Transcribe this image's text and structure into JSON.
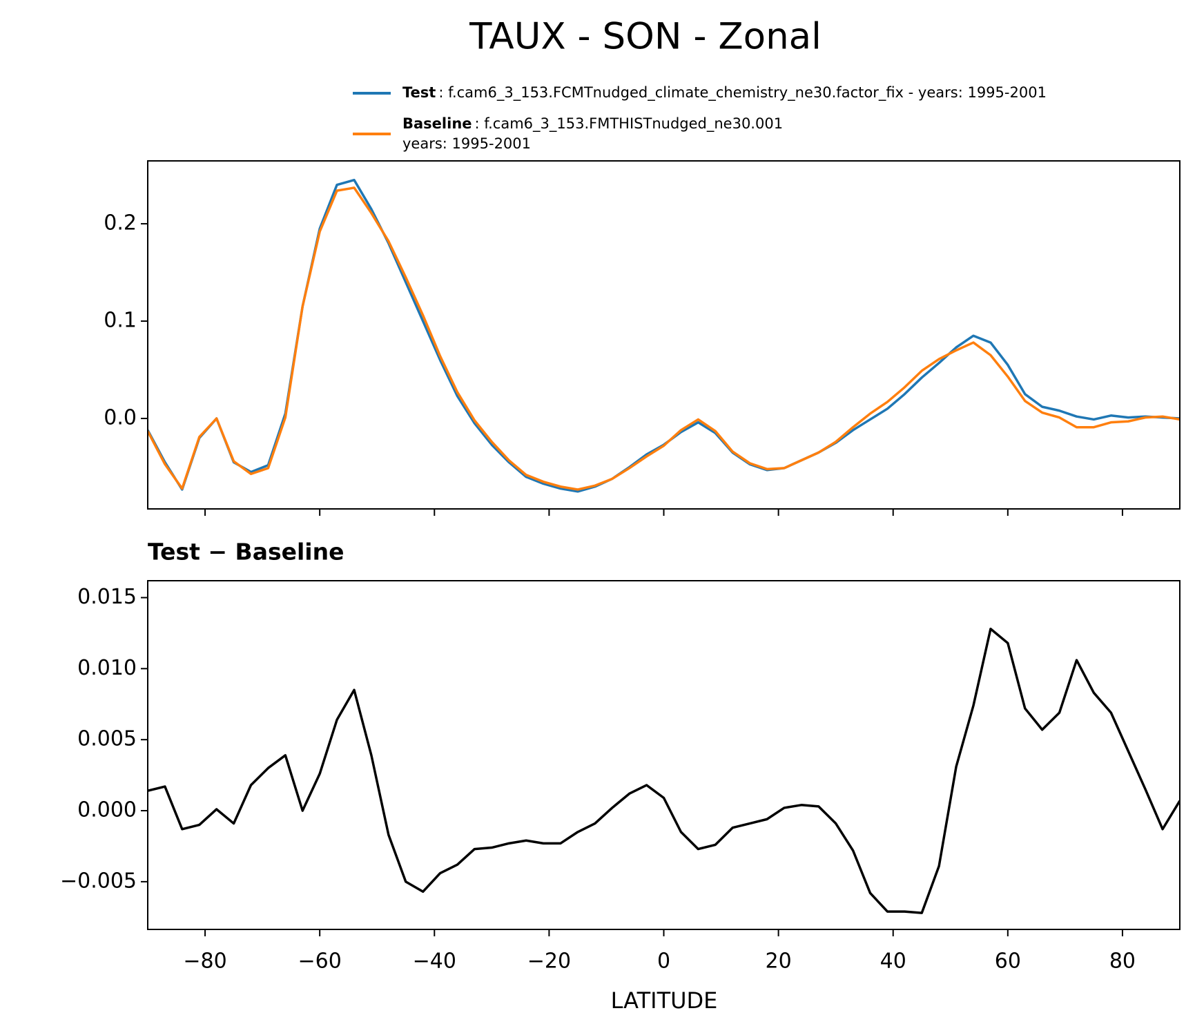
{
  "chart_data": [
    {
      "type": "line",
      "title": "TAUX - SON - Zonal",
      "x": [
        -90,
        -87,
        -84,
        -81,
        -78,
        -75,
        -72,
        -69,
        -66,
        -63,
        -60,
        -57,
        -54,
        -51,
        -48,
        -45,
        -42,
        -39,
        -36,
        -33,
        -30,
        -27,
        -24,
        -21,
        -18,
        -15,
        -12,
        -9,
        -6,
        -3,
        0,
        3,
        6,
        9,
        12,
        15,
        18,
        21,
        24,
        27,
        30,
        33,
        36,
        39,
        42,
        45,
        48,
        51,
        54,
        57,
        60,
        63,
        66,
        69,
        72,
        75,
        78,
        81,
        84,
        87,
        90
      ],
      "series": [
        {
          "name": "Test",
          "label_lines": [
            ": f.cam6_3_153.FCMTnudged_climate_chemistry_ne30.factor_fix - years: 1995-2001"
          ],
          "color": "#1f77b4",
          "values": [
            -0.012,
            -0.045,
            -0.073,
            -0.02,
            0.0,
            -0.045,
            -0.055,
            -0.048,
            0.005,
            0.115,
            0.195,
            0.24,
            0.245,
            0.215,
            0.18,
            0.14,
            0.1,
            0.06,
            0.023,
            -0.005,
            -0.027,
            -0.045,
            -0.06,
            -0.067,
            -0.072,
            -0.075,
            -0.07,
            -0.062,
            -0.05,
            -0.037,
            -0.027,
            -0.014,
            -0.004,
            -0.015,
            -0.035,
            -0.047,
            -0.053,
            -0.051,
            -0.043,
            -0.035,
            -0.025,
            -0.012,
            -0.001,
            0.01,
            0.025,
            0.042,
            0.057,
            0.073,
            0.085,
            0.078,
            0.055,
            0.025,
            0.012,
            0.008,
            0.002,
            -0.001,
            0.003,
            0.001,
            0.002,
            0.001,
            0.0
          ]
        },
        {
          "name": "Baseline",
          "label_lines": [
            ": f.cam6_3_153.FMTHISTnudged_ne30.001",
            "years: 1995-2001"
          ],
          "color": "#ff7f0e",
          "values": [
            -0.013,
            -0.047,
            -0.072,
            -0.019,
            0.0,
            -0.044,
            -0.057,
            -0.051,
            0.001,
            0.115,
            0.192,
            0.234,
            0.237,
            0.211,
            0.182,
            0.145,
            0.106,
            0.064,
            0.027,
            -0.002,
            -0.024,
            -0.043,
            -0.058,
            -0.065,
            -0.07,
            -0.073,
            -0.069,
            -0.062,
            -0.051,
            -0.039,
            -0.028,
            -0.012,
            -0.001,
            -0.013,
            -0.034,
            -0.046,
            -0.052,
            -0.051,
            -0.043,
            -0.035,
            -0.024,
            -0.009,
            0.005,
            0.017,
            0.032,
            0.049,
            0.061,
            0.07,
            0.078,
            0.065,
            0.043,
            0.018,
            0.006,
            0.001,
            -0.009,
            -0.009,
            -0.004,
            -0.003,
            0.001,
            0.002,
            -0.001
          ]
        }
      ],
      "xlim": [
        -90,
        90
      ],
      "xticks": [
        -80,
        -60,
        -40,
        -20,
        0,
        20,
        40,
        60,
        80
      ],
      "ylim": [
        -0.0929,
        0.2646
      ],
      "yticks": [
        {
          "value": 0,
          "label": "0.0"
        },
        0.1,
        0.2
      ]
    },
    {
      "type": "line",
      "title": "Test − Baseline",
      "xlabel": "LATITUDE",
      "x": [
        -90,
        -87,
        -84,
        -81,
        -78,
        -75,
        -72,
        -69,
        -66,
        -63,
        -60,
        -57,
        -54,
        -51,
        -48,
        -45,
        -42,
        -39,
        -36,
        -33,
        -30,
        -27,
        -24,
        -21,
        -18,
        -15,
        -12,
        -9,
        -6,
        -3,
        0,
        3,
        6,
        9,
        12,
        15,
        18,
        21,
        24,
        27,
        30,
        33,
        36,
        39,
        42,
        45,
        48,
        51,
        54,
        57,
        60,
        63,
        66,
        69,
        72,
        75,
        78,
        81,
        84,
        87,
        90
      ],
      "series": [
        {
          "color": "#000000",
          "values": [
            0.0014,
            0.0017,
            -0.0013,
            -0.001,
            0.0001,
            -0.0009,
            0.0018,
            0.003,
            0.0039,
            0,
            0.0026,
            0.0064,
            0.0085,
            0.0039,
            -0.0017,
            -0.005,
            -0.0057,
            -0.0044,
            -0.0038,
            -0.0027,
            -0.0026,
            -0.0023,
            -0.0021,
            -0.0023,
            -0.0023,
            -0.0015,
            -0.0009,
            0.0002,
            0.0012,
            0.0018,
            0.0009,
            -0.0015,
            -0.0027,
            -0.0024,
            -0.0012,
            -0.0009,
            -0.0006,
            0.0002,
            0.0004,
            0.0003,
            -0.0009,
            -0.0028,
            -0.0058,
            -0.0071,
            -0.0071,
            -0.0072,
            -0.0039,
            0.0031,
            0.0074,
            0.0128,
            0.0118,
            0.0072,
            0.0057,
            0.0069,
            0.0106,
            0.0083,
            0.0069,
            0.0042,
            0.0015,
            -0.0013,
            0.0007
          ]
        }
      ],
      "xlim": [
        -90,
        90
      ],
      "xticks": [
        {
          "value": -80,
          "label": "−80"
        },
        {
          "value": -60,
          "label": "−60"
        },
        {
          "value": -40,
          "label": "−40"
        },
        {
          "value": -20,
          "label": "−20"
        },
        0,
        20,
        40,
        60,
        80
      ],
      "ylim": [
        -0.00836,
        0.01619
      ],
      "yticks": [
        {
          "value": -0.005,
          "label": "−0.005"
        },
        {
          "value": 0,
          "label": "0.000"
        },
        0.005,
        {
          "value": 0.01,
          "label": "0.010"
        },
        0.015
      ]
    }
  ]
}
